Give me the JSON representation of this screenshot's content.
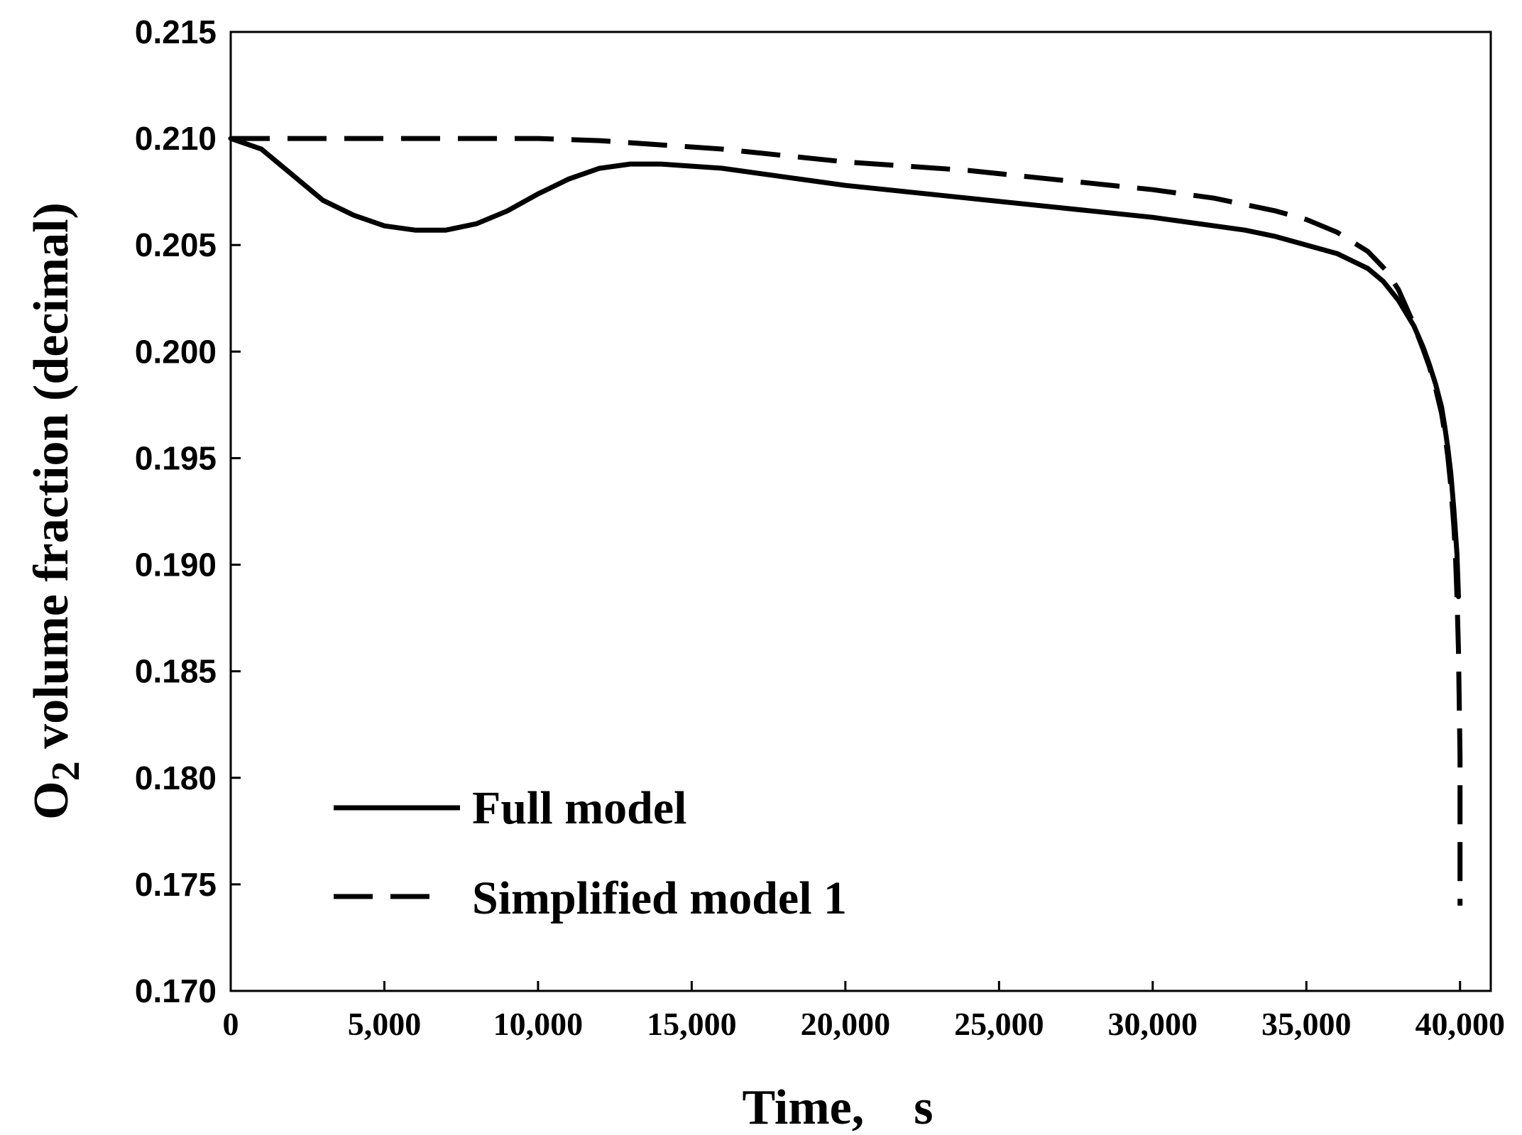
{
  "chart_data": {
    "type": "line",
    "title": "",
    "xlabel": "Time,　s",
    "ylabel": "O2 volume fraction (decimal)",
    "ylabel_parts": {
      "main": "O",
      "subscript": "2",
      "rest": " volume fraction (decimal)"
    },
    "xlim": [
      0,
      41000
    ],
    "ylim": [
      0.17,
      0.215
    ],
    "xticks": [
      0,
      5000,
      10000,
      15000,
      20000,
      25000,
      30000,
      35000,
      40000
    ],
    "xtick_labels": [
      "0",
      "5,000",
      "10,000",
      "15,000",
      "20,000",
      "25,000",
      "30,000",
      "35,000",
      "40,000"
    ],
    "yticks": [
      0.17,
      0.175,
      0.18,
      0.185,
      0.19,
      0.195,
      0.2,
      0.205,
      0.21,
      0.215
    ],
    "ytick_labels": [
      "0.170",
      "0.175",
      "0.180",
      "0.185",
      "0.190",
      "0.195",
      "0.200",
      "0.205",
      "0.210",
      "0.215"
    ],
    "grid": false,
    "legend_position": "bottom-left",
    "series": [
      {
        "name": "Full model",
        "style": "solid",
        "color": "#000000",
        "x": [
          0,
          1000,
          2000,
          3000,
          4000,
          5000,
          6000,
          7000,
          8000,
          9000,
          10000,
          11000,
          12000,
          13000,
          14000,
          15000,
          16000,
          18000,
          20000,
          22000,
          24000,
          26000,
          28000,
          30000,
          32000,
          33000,
          34000,
          35000,
          36000,
          37000,
          37500,
          38000,
          38500,
          38800,
          39000,
          39200,
          39400,
          39500,
          39600,
          39700,
          39800,
          39900,
          39950
        ],
        "y": [
          0.21,
          0.2095,
          0.2083,
          0.2071,
          0.2064,
          0.2059,
          0.2057,
          0.2057,
          0.206,
          0.2066,
          0.2074,
          0.2081,
          0.2086,
          0.2088,
          0.2088,
          0.2087,
          0.2086,
          0.2082,
          0.2078,
          0.2075,
          0.2072,
          0.2069,
          0.2066,
          0.2063,
          0.2059,
          0.2057,
          0.2054,
          0.205,
          0.2046,
          0.2039,
          0.2033,
          0.2024,
          0.2012,
          0.2002,
          0.1994,
          0.1985,
          0.1974,
          0.1965,
          0.1955,
          0.1943,
          0.1926,
          0.1905,
          0.1885
        ]
      },
      {
        "name": "Simplified model 1",
        "style": "dashed",
        "color": "#000000",
        "x": [
          0,
          2000,
          4000,
          6000,
          8000,
          10000,
          12000,
          14000,
          16000,
          18000,
          20000,
          22000,
          24000,
          26000,
          28000,
          30000,
          32000,
          34000,
          35000,
          36000,
          37000,
          37600,
          38000,
          38400,
          38800,
          39000,
          39200,
          39400,
          39500,
          39600,
          39700,
          39800,
          39850,
          39900,
          39950,
          40000,
          40000
        ],
        "y": [
          0.21,
          0.21,
          0.21,
          0.21,
          0.21,
          0.21,
          0.2099,
          0.2097,
          0.2095,
          0.2092,
          0.2089,
          0.2087,
          0.2085,
          0.2082,
          0.2079,
          0.2076,
          0.2072,
          0.2066,
          0.2062,
          0.2056,
          0.2047,
          0.2038,
          0.2029,
          0.2016,
          0.2001,
          0.1993,
          0.1983,
          0.1971,
          0.1962,
          0.1951,
          0.1937,
          0.1918,
          0.1905,
          0.1885,
          0.186,
          0.181,
          0.174
        ]
      }
    ]
  }
}
